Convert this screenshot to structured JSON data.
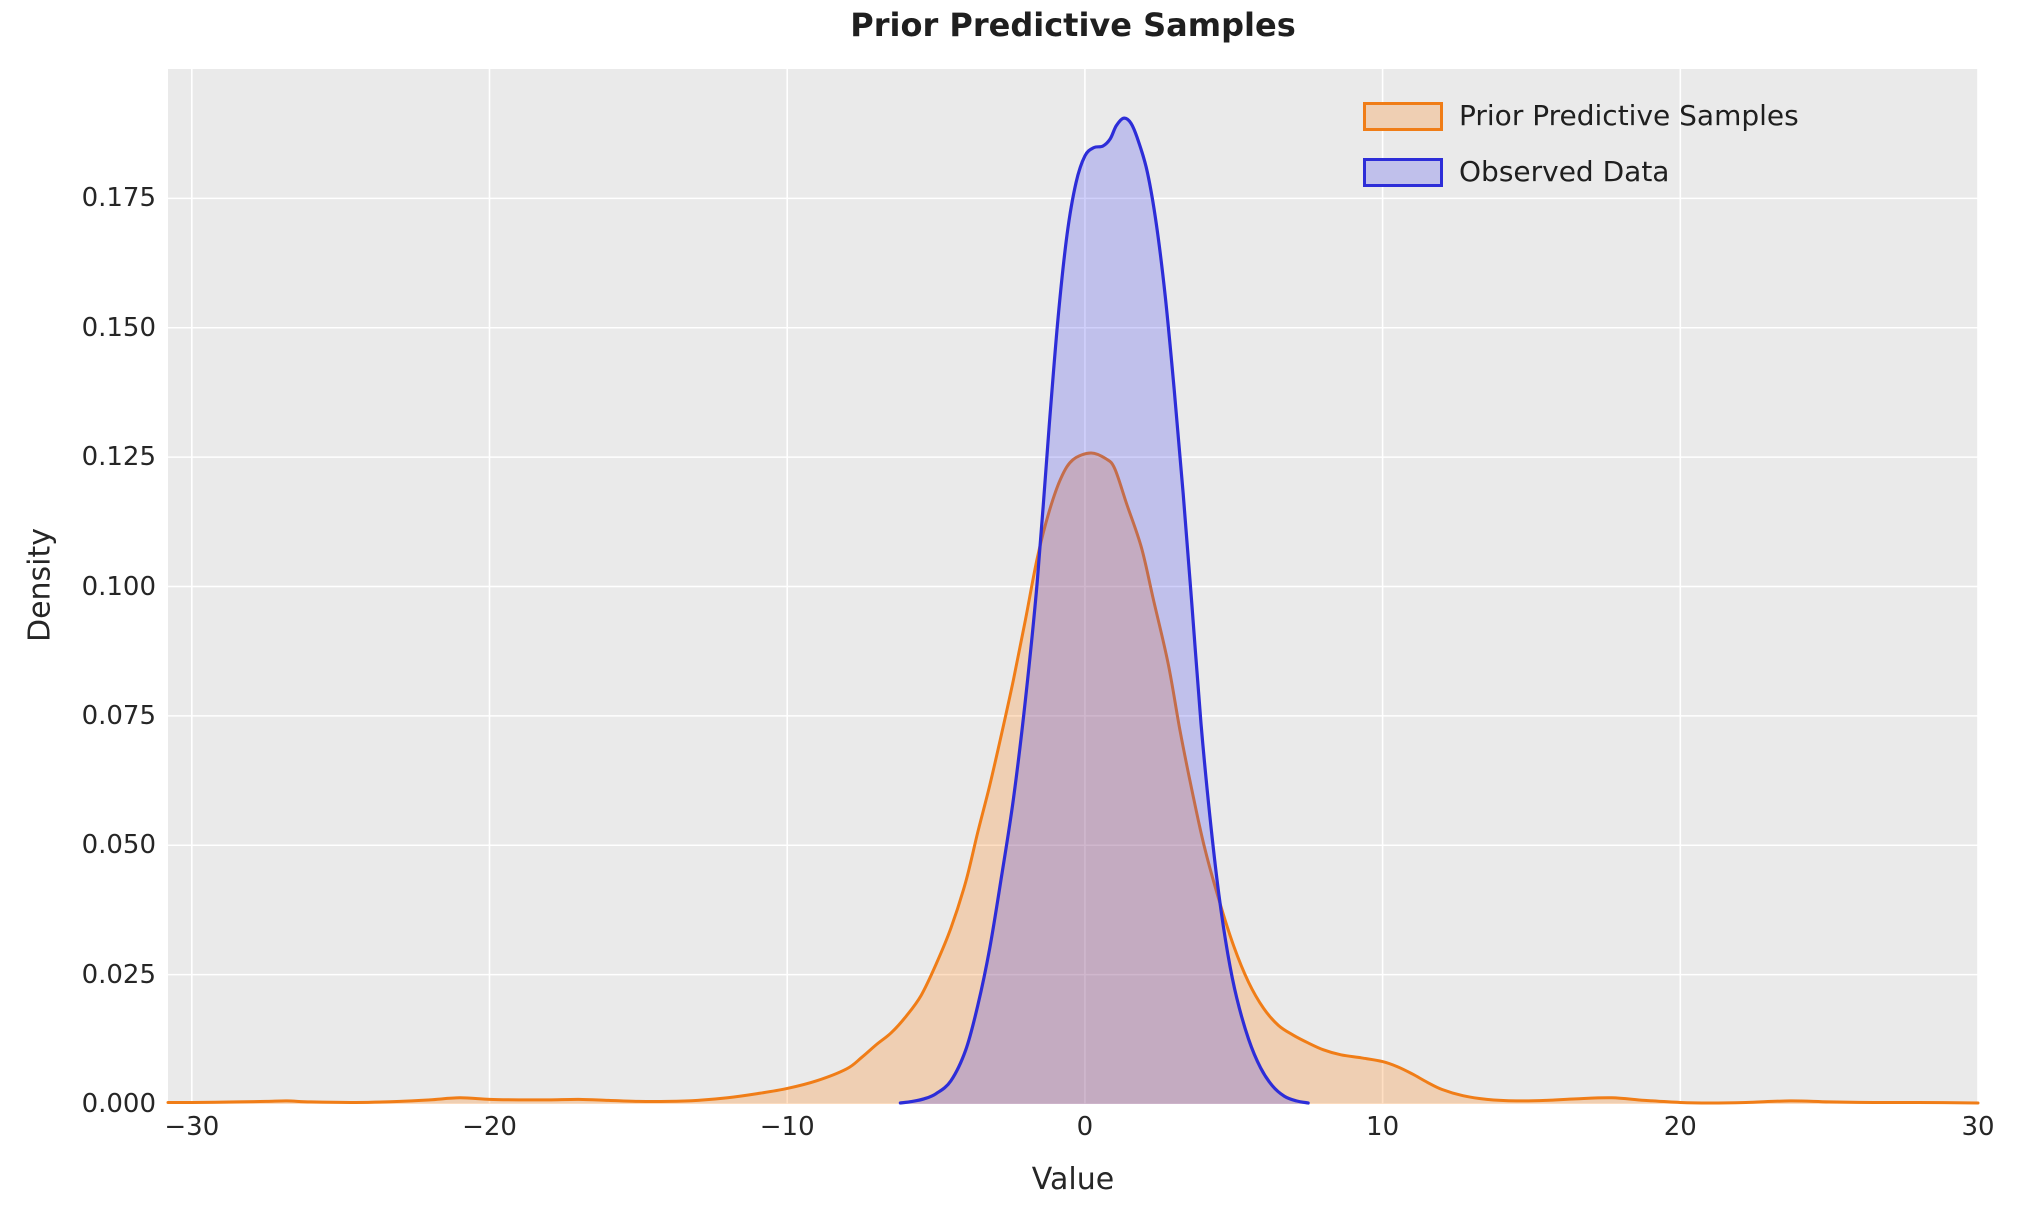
{
  "figure": {
    "bg": "#ffffff",
    "axes_bg": "#eaeaea",
    "grid_color": "#ffffff",
    "tick_color": "#262626",
    "title_color": "#1f1f1f"
  },
  "chart_data": {
    "type": "area",
    "title": "Prior Predictive Samples",
    "xlabel": "Value",
    "ylabel": "Density",
    "xlim": [
      -30.8,
      30.0
    ],
    "ylim": [
      0,
      0.2
    ],
    "grid": true,
    "legend_position": "upper right",
    "xticks": [
      {
        "v": -30,
        "label": "−30"
      },
      {
        "v": -20,
        "label": "−20"
      },
      {
        "v": -10,
        "label": "−10"
      },
      {
        "v": 0,
        "label": "0"
      },
      {
        "v": 10,
        "label": "10"
      },
      {
        "v": 20,
        "label": "20"
      },
      {
        "v": 30,
        "label": "30"
      }
    ],
    "yticks": [
      {
        "v": 0.0,
        "label": "0.000"
      },
      {
        "v": 0.025,
        "label": "0.025"
      },
      {
        "v": 0.05,
        "label": "0.050"
      },
      {
        "v": 0.075,
        "label": "0.075"
      },
      {
        "v": 0.1,
        "label": "0.100"
      },
      {
        "v": 0.125,
        "label": "0.125"
      },
      {
        "v": 0.15,
        "label": "0.150"
      },
      {
        "v": 0.175,
        "label": "0.175"
      }
    ],
    "series": [
      {
        "name": "Prior Predictive Samples",
        "kind": "kde",
        "line_color": "#f07d17",
        "fill_color": "#ff7f0e",
        "fill_alpha": 0.25,
        "line_width": 3,
        "peak": {
          "x": 0.2,
          "density": 0.1258
        },
        "points": [
          [
            -30.8,
            0.0003
          ],
          [
            -30,
            0.0003
          ],
          [
            -28.5,
            0.0004
          ],
          [
            -27.5,
            0.0005
          ],
          [
            -26.8,
            0.0006
          ],
          [
            -26,
            0.0004
          ],
          [
            -24.5,
            0.0003
          ],
          [
            -23,
            0.0005
          ],
          [
            -22,
            0.0008
          ],
          [
            -21,
            0.0012
          ],
          [
            -20,
            0.0009
          ],
          [
            -19,
            0.0008
          ],
          [
            -18,
            0.0008
          ],
          [
            -17,
            0.0009
          ],
          [
            -16,
            0.0007
          ],
          [
            -15,
            0.0005
          ],
          [
            -14,
            0.0005
          ],
          [
            -13,
            0.0007
          ],
          [
            -12,
            0.0012
          ],
          [
            -11,
            0.002
          ],
          [
            -10,
            0.003
          ],
          [
            -9,
            0.0045
          ],
          [
            -8,
            0.0068
          ],
          [
            -7.5,
            0.009
          ],
          [
            -7,
            0.0115
          ],
          [
            -6.5,
            0.0138
          ],
          [
            -6,
            0.017
          ],
          [
            -5.5,
            0.021
          ],
          [
            -5,
            0.027
          ],
          [
            -4.5,
            0.034
          ],
          [
            -4,
            0.043
          ],
          [
            -3.6,
            0.0525
          ],
          [
            -3.2,
            0.0615
          ],
          [
            -2.8,
            0.0715
          ],
          [
            -2.4,
            0.082
          ],
          [
            -2,
            0.0935
          ],
          [
            -1.6,
            0.1055
          ],
          [
            -1.2,
            0.1145
          ],
          [
            -0.8,
            0.121
          ],
          [
            -0.4,
            0.1245
          ],
          [
            0.2,
            0.1258
          ],
          [
            0.7,
            0.1247
          ],
          [
            1,
            0.1228
          ],
          [
            1.4,
            0.116
          ],
          [
            1.9,
            0.1075
          ],
          [
            2.3,
            0.0975
          ],
          [
            2.8,
            0.085
          ],
          [
            3.2,
            0.072
          ],
          [
            3.6,
            0.0605
          ],
          [
            4,
            0.05
          ],
          [
            4.5,
            0.0395
          ],
          [
            5,
            0.0305
          ],
          [
            5.5,
            0.0235
          ],
          [
            6,
            0.0185
          ],
          [
            6.5,
            0.0152
          ],
          [
            7,
            0.0133
          ],
          [
            7.5,
            0.0118
          ],
          [
            8,
            0.0105
          ],
          [
            8.6,
            0.0095
          ],
          [
            9.3,
            0.0089
          ],
          [
            10,
            0.0082
          ],
          [
            10.5,
            0.0072
          ],
          [
            11,
            0.0058
          ],
          [
            11.5,
            0.0042
          ],
          [
            12,
            0.0028
          ],
          [
            12.7,
            0.0016
          ],
          [
            13.5,
            0.0009
          ],
          [
            14.5,
            0.0006
          ],
          [
            15.5,
            0.0007
          ],
          [
            16.5,
            0.001
          ],
          [
            17.7,
            0.0012
          ],
          [
            18.8,
            0.0007
          ],
          [
            20,
            0.0003
          ],
          [
            21,
            0.0002
          ],
          [
            22.2,
            0.0003
          ],
          [
            23.7,
            0.0006
          ],
          [
            25,
            0.0004
          ],
          [
            26.5,
            0.0003
          ],
          [
            28,
            0.0003
          ],
          [
            30,
            0.0002
          ]
        ]
      },
      {
        "name": "Observed Data",
        "kind": "kde",
        "line_color": "#2d2dd8",
        "fill_color": "#3a3af0",
        "fill_alpha": 0.24,
        "line_width": 3.2,
        "peak": {
          "x": 1.3,
          "density": 0.1905
        },
        "points": [
          [
            -6.2,
            0.0002
          ],
          [
            -5.8,
            0.0005
          ],
          [
            -5.4,
            0.001
          ],
          [
            -5,
            0.002
          ],
          [
            -4.5,
            0.0045
          ],
          [
            -4,
            0.0105
          ],
          [
            -3.6,
            0.019
          ],
          [
            -3.2,
            0.03
          ],
          [
            -2.8,
            0.044
          ],
          [
            -2.4,
            0.059
          ],
          [
            -2,
            0.078
          ],
          [
            -1.6,
            0.101
          ],
          [
            -1.2,
            0.131
          ],
          [
            -0.9,
            0.152
          ],
          [
            -0.6,
            0.168
          ],
          [
            -0.3,
            0.178
          ],
          [
            0,
            0.1832
          ],
          [
            0.3,
            0.1848
          ],
          [
            0.6,
            0.1851
          ],
          [
            0.85,
            0.1865
          ],
          [
            1.05,
            0.189
          ],
          [
            1.3,
            0.1905
          ],
          [
            1.55,
            0.1895
          ],
          [
            1.8,
            0.186
          ],
          [
            2.1,
            0.18
          ],
          [
            2.4,
            0.17
          ],
          [
            2.7,
            0.156
          ],
          [
            3,
            0.138
          ],
          [
            3.3,
            0.118
          ],
          [
            3.6,
            0.096
          ],
          [
            3.9,
            0.0735
          ],
          [
            4.2,
            0.0555
          ],
          [
            4.5,
            0.0405
          ],
          [
            4.8,
            0.029
          ],
          [
            5.1,
            0.0205
          ],
          [
            5.5,
            0.0125
          ],
          [
            5.9,
            0.007
          ],
          [
            6.3,
            0.0035
          ],
          [
            6.7,
            0.0015
          ],
          [
            7.1,
            0.0006
          ],
          [
            7.5,
            0.0002
          ]
        ]
      }
    ]
  }
}
